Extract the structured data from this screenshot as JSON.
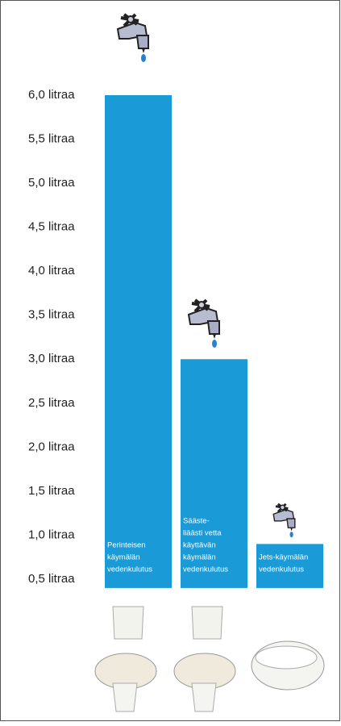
{
  "chart_data": {
    "type": "bar",
    "categories": [
      [
        "Perinteisen",
        "käymälän",
        "vedenkulutus"
      ],
      [
        "Sääste-",
        "liäästi vetta",
        "käyttävän",
        "käymälän",
        "vedenkulutus"
      ],
      [
        "Jets-käymälän",
        "vedenkulutus"
      ]
    ],
    "values": [
      6.0,
      3.0,
      0.9
    ],
    "color": "#1a9ad7",
    "ylim": [
      0.4,
      6.1
    ],
    "yticks": [
      {
        "value": 0.5,
        "label": "0,5 litraa"
      },
      {
        "value": 1.0,
        "label": "1,0 litraa"
      },
      {
        "value": 1.5,
        "label": "1,5 litraa"
      },
      {
        "value": 2.0,
        "label": "2,0 litraa"
      },
      {
        "value": 2.5,
        "label": "2,5 litraa"
      },
      {
        "value": 3.0,
        "label": "3,0 litraa"
      },
      {
        "value": 3.5,
        "label": "3,5 litraa"
      },
      {
        "value": 4.0,
        "label": "4,0 litraa"
      },
      {
        "value": 4.5,
        "label": "4,5 litraa"
      },
      {
        "value": 5.0,
        "label": "5,0 litraa"
      },
      {
        "value": 5.5,
        "label": "5,5 litraa"
      },
      {
        "value": 6.0,
        "label": "6,0 litraa"
      }
    ]
  }
}
